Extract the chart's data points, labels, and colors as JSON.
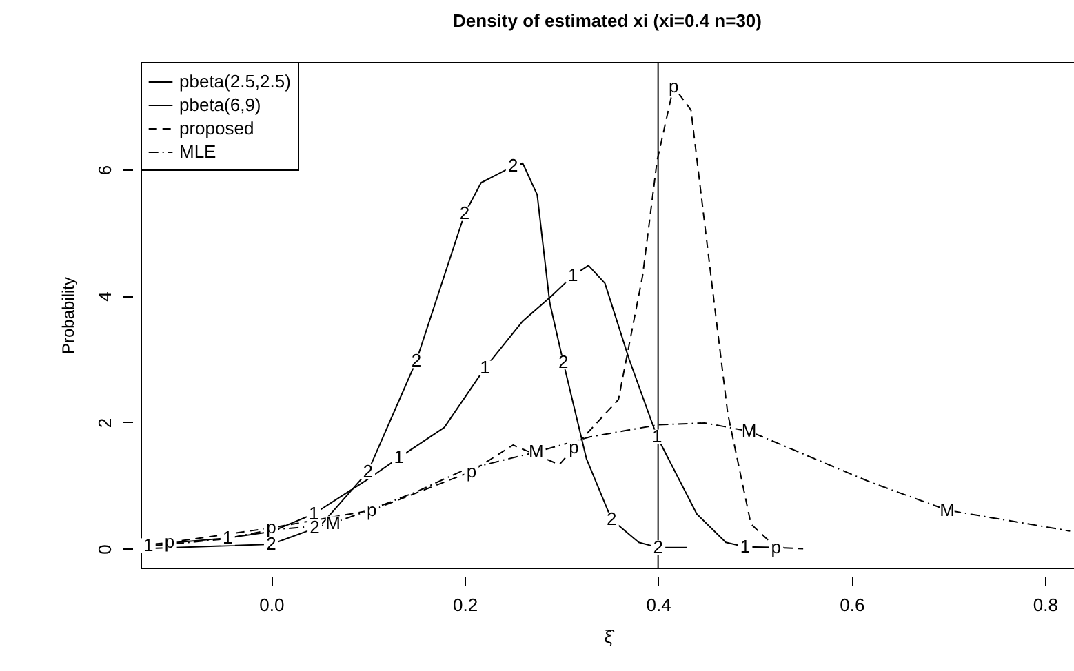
{
  "chart_data": {
    "type": "line",
    "title": "Density of estimated xi (xi=0.4  n=30)",
    "xlabel": "ξ̂",
    "ylabel": "Probability",
    "xlim": [
      -0.135,
      0.83
    ],
    "ylim": [
      -0.3,
      7.7
    ],
    "xticks": [
      {
        "value": 0,
        "label": "0.0"
      },
      0.2,
      0.4,
      0.6,
      0.8
    ],
    "yticks": [
      0,
      2,
      4,
      6
    ],
    "grid": false,
    "legend": "top left",
    "marker": "none",
    "ref_lines": [
      {
        "axis": "x",
        "value": 0.4,
        "color": "#000000",
        "line_style": "solid"
      }
    ],
    "series": [
      {
        "name": "pbeta(2.5,2.5)",
        "color": "#000000",
        "line_style": "solid",
        "x": [
          -0.135,
          -0.045,
          0.0,
          0.044,
          0.1,
          0.132,
          0.179,
          0.221,
          0.26,
          0.29,
          0.312,
          0.328,
          0.345,
          0.37,
          0.399,
          0.44,
          0.47,
          0.49,
          0.53
        ],
        "values": [
          0.05,
          0.17,
          0.27,
          0.55,
          1.1,
          1.44,
          1.92,
          2.86,
          3.6,
          4.0,
          4.32,
          4.48,
          4.2,
          3.0,
          1.77,
          0.55,
          0.1,
          0.03,
          0.02
        ]
      },
      {
        "name": "pbeta(6,9)",
        "color": "#000000",
        "line_style": "solid",
        "x": [
          -0.135,
          0.0,
          0.05,
          0.1,
          0.15,
          0.2,
          0.217,
          0.25,
          0.26,
          0.275,
          0.288,
          0.302,
          0.326,
          0.352,
          0.38,
          0.4,
          0.43
        ],
        "values": [
          0.0,
          0.07,
          0.35,
          1.22,
          2.97,
          5.3,
          5.79,
          6.05,
          6.1,
          5.6,
          3.89,
          2.95,
          1.42,
          0.46,
          0.1,
          0.02,
          0.02
        ]
      },
      {
        "name": "proposed",
        "color": "#000000",
        "line_style": "dashed",
        "x": [
          -0.135,
          -0.105,
          0.0,
          0.104,
          0.207,
          0.25,
          0.298,
          0.313,
          0.359,
          0.384,
          0.399,
          0.416,
          0.434,
          0.458,
          0.472,
          0.496,
          0.522,
          0.55
        ],
        "values": [
          0.05,
          0.1,
          0.33,
          0.61,
          1.22,
          1.64,
          1.33,
          1.6,
          2.36,
          4.32,
          6.14,
          7.31,
          6.94,
          3.89,
          2.14,
          0.39,
          0.02,
          0.0
        ]
      },
      {
        "name": "MLE",
        "color": "#000000",
        "line_style": "dotted",
        "x": [
          -0.12,
          -0.05,
          0.0,
          0.057,
          0.1,
          0.15,
          0.2,
          0.274,
          0.33,
          0.4,
          0.448,
          0.494,
          0.553,
          0.62,
          0.699,
          0.826
        ],
        "values": [
          0.05,
          0.15,
          0.3,
          0.37,
          0.6,
          0.9,
          1.25,
          1.53,
          1.77,
          1.96,
          1.99,
          1.86,
          1.48,
          1.05,
          0.61,
          0.28
        ]
      }
    ],
    "annotations": [
      {
        "text": "1",
        "x": -0.127,
        "y": 0.05
      },
      {
        "text": "1",
        "x": -0.045,
        "y": 0.17
      },
      {
        "text": "1",
        "x": 0.044,
        "y": 0.55
      },
      {
        "text": "1",
        "x": 0.132,
        "y": 1.44
      },
      {
        "text": "1",
        "x": 0.221,
        "y": 2.86
      },
      {
        "text": "1",
        "x": 0.312,
        "y": 4.32
      },
      {
        "text": "1",
        "x": 0.399,
        "y": 1.77
      },
      {
        "text": "1",
        "x": 0.49,
        "y": 0.03
      },
      {
        "text": "2",
        "x": 0.0,
        "y": 0.07
      },
      {
        "text": "2",
        "x": 0.045,
        "y": 0.33
      },
      {
        "text": "2",
        "x": 0.1,
        "y": 1.22
      },
      {
        "text": "2",
        "x": 0.15,
        "y": 2.97
      },
      {
        "text": "2",
        "x": 0.2,
        "y": 5.3
      },
      {
        "text": "2",
        "x": 0.25,
        "y": 6.05
      },
      {
        "text": "2",
        "x": 0.302,
        "y": 2.95
      },
      {
        "text": "2",
        "x": 0.352,
        "y": 0.46
      },
      {
        "text": "2",
        "x": 0.4,
        "y": 0.02
      },
      {
        "text": "p",
        "x": -0.105,
        "y": 0.1
      },
      {
        "text": "p",
        "x": 0.0,
        "y": 0.33
      },
      {
        "text": "p",
        "x": 0.104,
        "y": 0.61
      },
      {
        "text": "p",
        "x": 0.207,
        "y": 1.22
      },
      {
        "text": "p",
        "x": 0.313,
        "y": 1.6
      },
      {
        "text": "p",
        "x": 0.416,
        "y": 7.31
      },
      {
        "text": "p",
        "x": 0.522,
        "y": 0.02
      },
      {
        "text": "M",
        "x": 0.064,
        "y": 0.4
      },
      {
        "text": "M",
        "x": 0.274,
        "y": 1.53
      },
      {
        "text": "M",
        "x": 0.494,
        "y": 1.86
      },
      {
        "text": "M",
        "x": 0.699,
        "y": 0.61
      }
    ]
  }
}
